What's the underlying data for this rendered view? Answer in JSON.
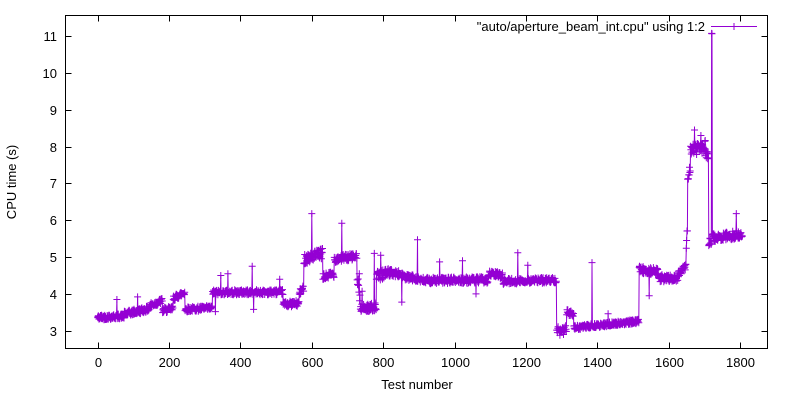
{
  "chart_data": {
    "type": "line",
    "style": "linespoints",
    "marker": "plus",
    "series_color": "#9400d3",
    "axis_color": "#000000",
    "background_color": "#ffffff",
    "legend_label": "\"auto/aperture_beam_int.cpu\" using 1:2",
    "legend_position": "top-right-inside",
    "xlabel": "Test number",
    "ylabel": "CPU time (s)",
    "xticks": [
      0,
      200,
      400,
      600,
      800,
      1000,
      1200,
      1400,
      1600,
      1800
    ],
    "yticks": [
      3,
      4,
      5,
      6,
      7,
      8,
      9,
      10,
      11
    ],
    "xlim": [
      -91,
      1878
    ],
    "ylim": [
      2.45,
      11.57
    ],
    "grid": false,
    "ticks_mirrored": true,
    "sampling": {
      "x_start": 0,
      "x_end": 1806,
      "step": 1,
      "seed": 42
    },
    "series_segments_comment": "piecewise summary of the noisy series: [test_from, test_to, cpu_start, cpu_end, noise_halfband]",
    "series_segments": [
      [
        0,
        75,
        3.36,
        3.4,
        0.07
      ],
      [
        75,
        145,
        3.45,
        3.6,
        0.08
      ],
      [
        145,
        182,
        3.68,
        3.82,
        0.08
      ],
      [
        182,
        212,
        3.55,
        3.6,
        0.08
      ],
      [
        212,
        245,
        3.88,
        4.05,
        0.08
      ],
      [
        245,
        322,
        3.58,
        3.62,
        0.07
      ],
      [
        322,
        520,
        4.04,
        4.05,
        0.07
      ],
      [
        520,
        565,
        3.72,
        3.74,
        0.08
      ],
      [
        565,
        578,
        4.02,
        4.18,
        0.09
      ],
      [
        578,
        631,
        4.95,
        5.1,
        0.14
      ],
      [
        631,
        663,
        4.45,
        4.55,
        0.1
      ],
      [
        663,
        727,
        4.95,
        5.02,
        0.1
      ],
      [
        727,
        742,
        4.3,
        3.8,
        0.45
      ],
      [
        742,
        781,
        3.6,
        3.66,
        0.11
      ],
      [
        781,
        805,
        4.48,
        4.55,
        0.13
      ],
      [
        805,
        856,
        4.6,
        4.52,
        0.1
      ],
      [
        856,
        902,
        4.45,
        4.42,
        0.09
      ],
      [
        902,
        1096,
        4.36,
        4.38,
        0.09
      ],
      [
        1096,
        1136,
        4.55,
        4.5,
        0.09
      ],
      [
        1136,
        1286,
        4.34,
        4.38,
        0.08
      ],
      [
        1286,
        1314,
        3.02,
        3.06,
        0.09
      ],
      [
        1314,
        1334,
        3.5,
        3.44,
        0.08
      ],
      [
        1334,
        1517,
        3.08,
        3.26,
        0.06
      ],
      [
        1517,
        1572,
        4.66,
        4.6,
        0.1
      ],
      [
        1572,
        1626,
        4.42,
        4.44,
        0.1
      ],
      [
        1626,
        1649,
        4.55,
        4.74,
        0.09
      ],
      [
        1649,
        1653,
        5.35,
        5.85,
        0.12
      ],
      [
        1653,
        1661,
        7.1,
        7.45,
        0.15
      ],
      [
        1661,
        1703,
        7.9,
        8.0,
        0.17
      ],
      [
        1703,
        1712,
        7.8,
        7.75,
        0.1
      ],
      [
        1712,
        1720,
        5.4,
        5.45,
        0.1
      ],
      [
        1720,
        1722,
        11.05,
        11.05,
        0.02
      ],
      [
        1722,
        1807,
        5.52,
        5.62,
        0.12
      ]
    ],
    "outlier_points_comment": "isolated spike/dip points [test, cpu_seconds]",
    "outlier_points": [
      [
        54,
        3.85
      ],
      [
        112,
        3.92
      ],
      [
        330,
        3.52
      ],
      [
        345,
        4.5
      ],
      [
        365,
        4.55
      ],
      [
        433,
        4.75
      ],
      [
        437,
        3.58
      ],
      [
        510,
        4.4
      ],
      [
        600,
        6.18
      ],
      [
        684,
        5.92
      ],
      [
        775,
        5.1
      ],
      [
        793,
        5.05
      ],
      [
        852,
        3.78
      ],
      [
        896,
        5.47
      ],
      [
        958,
        4.87
      ],
      [
        1022,
        4.9
      ],
      [
        1060,
        4.0
      ],
      [
        1177,
        5.12
      ],
      [
        1205,
        4.78
      ],
      [
        1295,
        2.88
      ],
      [
        1305,
        2.9
      ],
      [
        1385,
        4.85
      ],
      [
        1430,
        3.46
      ],
      [
        1545,
        3.95
      ],
      [
        1672,
        8.45
      ],
      [
        1690,
        8.3
      ],
      [
        1789,
        6.18
      ]
    ]
  }
}
